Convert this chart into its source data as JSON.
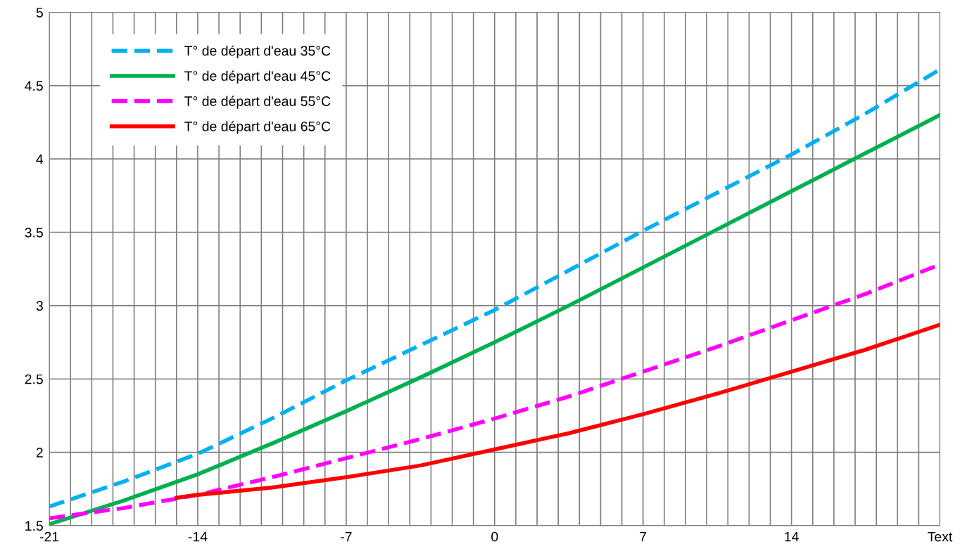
{
  "chart_data": {
    "type": "line",
    "xlim": [
      -21,
      21
    ],
    "ylim": [
      1.5,
      5
    ],
    "xticks": [
      -21,
      {
        "value": -20,
        "label": null
      },
      {
        "value": -19,
        "label": null
      },
      {
        "value": -18,
        "label": null
      },
      {
        "value": -17,
        "label": null
      },
      {
        "value": -16,
        "label": null
      },
      {
        "value": -15,
        "label": null
      },
      -14,
      {
        "value": -13,
        "label": null
      },
      {
        "value": -12,
        "label": null
      },
      {
        "value": -11,
        "label": null
      },
      {
        "value": -10,
        "label": null
      },
      {
        "value": -9,
        "label": null
      },
      {
        "value": -8,
        "label": null
      },
      -7,
      {
        "value": -6,
        "label": null
      },
      {
        "value": -5,
        "label": null
      },
      {
        "value": -4,
        "label": null
      },
      {
        "value": -3,
        "label": null
      },
      {
        "value": -2,
        "label": null
      },
      {
        "value": -1,
        "label": null
      },
      0,
      {
        "value": 1,
        "label": null
      },
      {
        "value": 2,
        "label": null
      },
      {
        "value": 3,
        "label": null
      },
      {
        "value": 4,
        "label": null
      },
      {
        "value": 5,
        "label": null
      },
      {
        "value": 6,
        "label": null
      },
      7,
      {
        "value": 8,
        "label": null
      },
      {
        "value": 9,
        "label": null
      },
      {
        "value": 10,
        "label": null
      },
      {
        "value": 11,
        "label": null
      },
      {
        "value": 12,
        "label": null
      },
      {
        "value": 13,
        "label": null
      },
      14,
      {
        "value": 15,
        "label": null
      },
      {
        "value": 16,
        "label": null
      },
      {
        "value": 17,
        "label": null
      },
      {
        "value": 18,
        "label": null
      },
      {
        "value": 19,
        "label": null
      },
      {
        "value": 20,
        "label": null
      },
      {
        "value": 21,
        "label": "Text"
      }
    ],
    "yticks": [
      1.5,
      2,
      2.5,
      3,
      3.5,
      4,
      4.5,
      5
    ],
    "grid": true,
    "legend": "top left",
    "marker": "none",
    "series": [
      {
        "name": "T° de départ d'eau 35°C",
        "color": "#00b0f0",
        "line_style": "dashed",
        "x": [
          -21,
          -17.5,
          -14,
          -10.5,
          -7,
          -3.5,
          0,
          3.5,
          7,
          10.5,
          14,
          17.5,
          21
        ],
        "values": [
          1.63,
          1.8,
          1.99,
          2.23,
          2.49,
          2.73,
          2.97,
          3.24,
          3.51,
          3.77,
          4.03,
          4.31,
          4.61
        ]
      },
      {
        "name": "T° de départ d'eau 45°C",
        "color": "#00b050",
        "line_style": "solid",
        "x": [
          -21,
          -17.5,
          -14,
          -10.5,
          -7,
          -3.5,
          0,
          3.5,
          7,
          10.5,
          14,
          17.5,
          21
        ],
        "values": [
          1.51,
          1.67,
          1.85,
          2.06,
          2.28,
          2.51,
          2.75,
          3.0,
          3.26,
          3.52,
          3.78,
          4.04,
          4.3
        ]
      },
      {
        "name": "T° de départ d'eau 55°C",
        "color": "#ff00ff",
        "line_style": "dashed",
        "x": [
          -21,
          -17.5,
          -14,
          -10.5,
          -7,
          -3.5,
          0,
          3.5,
          7,
          10.5,
          14,
          17.5,
          21
        ],
        "values": [
          1.55,
          1.62,
          1.71,
          1.83,
          1.96,
          2.09,
          2.23,
          2.38,
          2.55,
          2.72,
          2.9,
          3.08,
          3.28
        ]
      },
      {
        "name": "T° de départ d'eau 65°C",
        "color": "#ff0000",
        "line_style": "solid",
        "x": [
          -15,
          -14,
          -10.5,
          -7,
          -3.5,
          0,
          3.5,
          7,
          10.5,
          14,
          17.5,
          21
        ],
        "values": [
          1.69,
          1.71,
          1.76,
          1.83,
          1.91,
          2.02,
          2.13,
          2.26,
          2.4,
          2.55,
          2.7,
          2.87
        ]
      }
    ]
  }
}
